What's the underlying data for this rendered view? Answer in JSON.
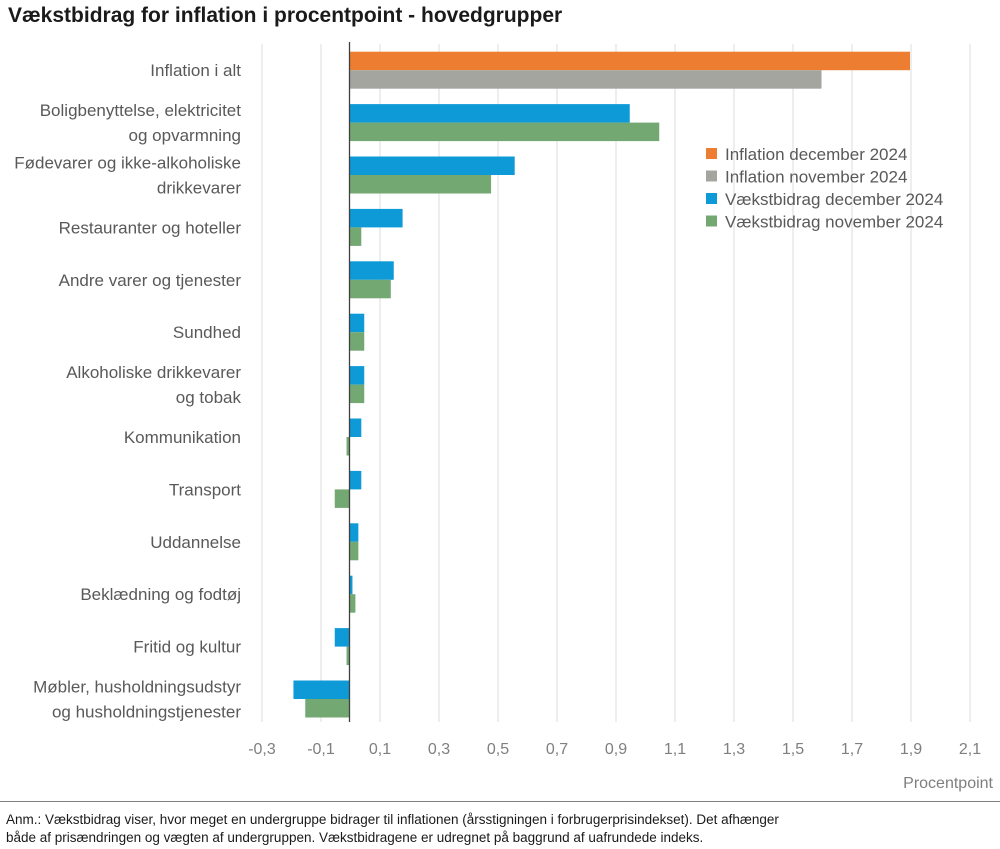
{
  "chart_data": {
    "type": "bar",
    "orientation": "horizontal",
    "title": "Vækstbidrag for inflation i procentpoint - hovedgrupper",
    "xlabel": "Procentpoint",
    "xlim": [
      -0.3,
      2.1
    ],
    "xticks": [
      -0.3,
      -0.1,
      0.1,
      0.3,
      0.5,
      0.7,
      0.9,
      1.1,
      1.3,
      1.5,
      1.7,
      1.9,
      2.1
    ],
    "xtick_labels": [
      "-0,3",
      "-0,1",
      "0,1",
      "0,3",
      "0,5",
      "0,7",
      "0,9",
      "1,1",
      "1,3",
      "1,5",
      "1,7",
      "1,9",
      "2,1"
    ],
    "grid": true,
    "legend_position": "right-upper",
    "categories": [
      [
        "Inflation i alt"
      ],
      [
        "Boligbenyttelse, elektricitet",
        "og opvarmning"
      ],
      [
        "Fødevarer og ikke-alkoholiske",
        "drikkevarer"
      ],
      [
        "Restauranter og hoteller"
      ],
      [
        "Andre varer og tjenester"
      ],
      [
        "Sundhed"
      ],
      [
        "Alkoholiske drikkevarer",
        "og tobak"
      ],
      [
        "Kommunikation"
      ],
      [
        "Transport"
      ],
      [
        "Uddannelse"
      ],
      [
        "Beklædning og fodtøj"
      ],
      [
        "Fritid og kultur"
      ],
      [
        "Møbler, husholdningsudstyr",
        "og husholdningstjenester"
      ]
    ],
    "series": [
      {
        "name": "Inflation december 2024",
        "color": "#ed7d31",
        "values": [
          1.9,
          null,
          null,
          null,
          null,
          null,
          null,
          null,
          null,
          null,
          null,
          null,
          null
        ]
      },
      {
        "name": "Inflation november 2024",
        "color": "#a5a5a0",
        "values": [
          1.6,
          null,
          null,
          null,
          null,
          null,
          null,
          null,
          null,
          null,
          null,
          null,
          null
        ]
      },
      {
        "name": "Vækstbidrag december 2024",
        "color": "#0e9ad7",
        "values": [
          null,
          0.95,
          0.56,
          0.18,
          0.15,
          0.05,
          0.05,
          0.04,
          0.04,
          0.03,
          0.01,
          -0.05,
          -0.19
        ]
      },
      {
        "name": "Vækstbidrag november 2024",
        "color": "#74a873",
        "values": [
          null,
          1.05,
          0.48,
          0.04,
          0.14,
          0.05,
          0.05,
          -0.01,
          -0.05,
          0.03,
          0.02,
          -0.01,
          -0.15
        ]
      }
    ]
  },
  "note": {
    "line1": "Anm.: Vækstbidrag viser, hvor meget en undergruppe bidrager til inflationen (årsstigningen i forbrugerprisindekset). Det afhænger",
    "line2": "både af prisændringen og vægten af undergruppen. Vækstbidragene er udregnet på baggrund af uafrundede indeks."
  }
}
